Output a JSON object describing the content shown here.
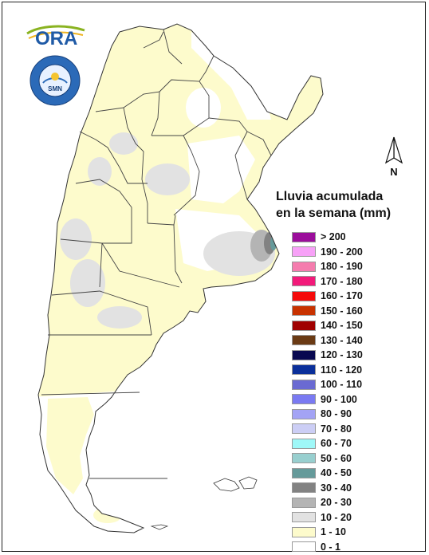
{
  "logos": {
    "ora_text": "ORA",
    "smn_ring_text": "SERVICIO METEOROLOGICO NACIONAL · ARGENTINA",
    "smn_inner_text": "SMN"
  },
  "north_arrow": {
    "label": "N"
  },
  "legend": {
    "title_line1": "Lluvia acumulada",
    "title_line2": "en la semana (mm)",
    "items": [
      {
        "label": "> 200",
        "color": "#9b0d9b"
      },
      {
        "label": "190 - 200",
        "color": "#f7a1f7"
      },
      {
        "label": "180 - 190",
        "color": "#f57cae"
      },
      {
        "label": "170 - 180",
        "color": "#f21a7a"
      },
      {
        "label": "160 - 170",
        "color": "#f50a0a"
      },
      {
        "label": "150 - 160",
        "color": "#c83200"
      },
      {
        "label": "140 - 150",
        "color": "#a00000"
      },
      {
        "label": "130 - 140",
        "color": "#6a3a14"
      },
      {
        "label": "120 - 130",
        "color": "#080850"
      },
      {
        "label": "110 - 120",
        "color": "#0a2f9a"
      },
      {
        "label": "100 - 110",
        "color": "#6a6ad2"
      },
      {
        "label": "90 - 100",
        "color": "#7a7af2"
      },
      {
        "label": "80 - 90",
        "color": "#a3a3f5"
      },
      {
        "label": "70 - 80",
        "color": "#cccef5"
      },
      {
        "label": "60 - 70",
        "color": "#9ff8f8"
      },
      {
        "label": "50 - 60",
        "color": "#98cfcf"
      },
      {
        "label": "40 - 50",
        "color": "#659a9a"
      },
      {
        "label": "30 - 40",
        "color": "#828282"
      },
      {
        "label": "20 - 30",
        "color": "#b4b4b4"
      },
      {
        "label": "10 - 20",
        "color": "#e2e2e2"
      },
      {
        "label": "1 - 10",
        "color": "#fdfbcc"
      },
      {
        "label": "0 - 1",
        "color": "#ffffff"
      }
    ]
  }
}
